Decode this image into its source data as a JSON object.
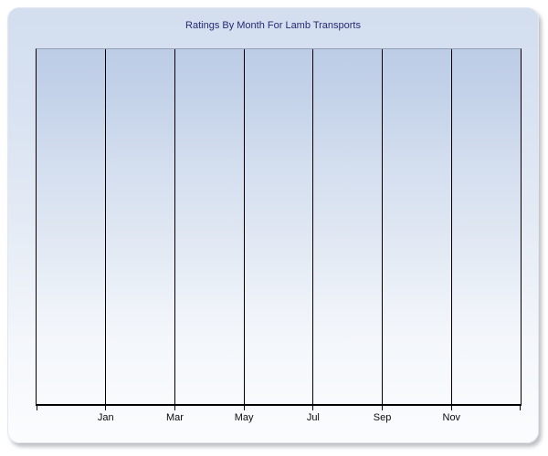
{
  "window": {
    "background_color": "#ffffff"
  },
  "panel": {
    "gradient_top_color": "#d3deef",
    "gradient_bottom_color": "#fbfcfe",
    "shadow": "bottom-right gray drop shadow",
    "corner_style": "rounded"
  },
  "chart_data": {
    "type": "line",
    "title": "Ratings By Month For Lamb Transports",
    "title_color": "#262a73",
    "x_tick_labels": [
      "Jan",
      "Mar",
      "May",
      "Jul",
      "Sep",
      "Nov"
    ],
    "x_axis": {
      "gridline_count": 8,
      "interval_count": 7,
      "tick_count": 8,
      "labels_under_interior_gridlines": true
    },
    "y_axis": {
      "tick_labels": [],
      "visible_labels": false
    },
    "series": [],
    "grid": "vertical-only",
    "legend": "none",
    "colors": {
      "gridline": "#000000",
      "axis_line": "#000000",
      "plot_top_border": "#939fb4",
      "tick_label": "#0b0b0b"
    }
  }
}
